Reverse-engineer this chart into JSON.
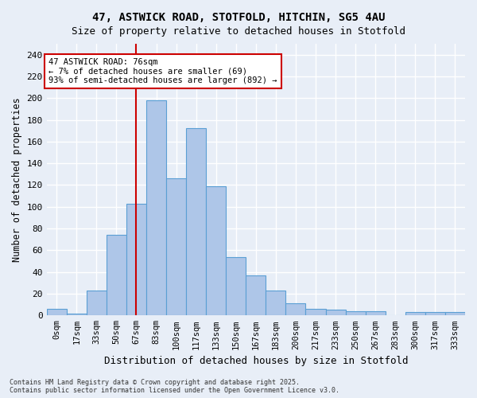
{
  "title1": "47, ASTWICK ROAD, STOTFOLD, HITCHIN, SG5 4AU",
  "title2": "Size of property relative to detached houses in Stotfold",
  "xlabel": "Distribution of detached houses by size in Stotfold",
  "ylabel": "Number of detached properties",
  "footer1": "Contains HM Land Registry data © Crown copyright and database right 2025.",
  "footer2": "Contains public sector information licensed under the Open Government Licence v3.0.",
  "bar_labels": [
    "0sqm",
    "17sqm",
    "33sqm",
    "50sqm",
    "67sqm",
    "83sqm",
    "100sqm",
    "117sqm",
    "133sqm",
    "150sqm",
    "167sqm",
    "183sqm",
    "200sqm",
    "217sqm",
    "233sqm",
    "250sqm",
    "267sqm",
    "283sqm",
    "300sqm",
    "317sqm",
    "333sqm"
  ],
  "bar_values": [
    6,
    2,
    23,
    74,
    103,
    198,
    126,
    172,
    119,
    54,
    37,
    23,
    11,
    6,
    5,
    4,
    4,
    0,
    3,
    3,
    3
  ],
  "bar_color": "#aec6e8",
  "bar_edge_color": "#5a9fd4",
  "annotation_line_label": "47 ASTWICK ROAD: 76sqm",
  "annotation_line1": "← 7% of detached houses are smaller (69)",
  "annotation_line2": "93% of semi-detached houses are larger (892) →",
  "vline_x": 76,
  "vline_color": "#cc0000",
  "ylim": [
    0,
    250
  ],
  "yticks": [
    0,
    20,
    40,
    60,
    80,
    100,
    120,
    140,
    160,
    180,
    200,
    220,
    240
  ],
  "bg_color": "#e8eef7",
  "grid_color": "#ffffff",
  "annotation_rect_color": "#ffffff",
  "annotation_rect_edge": "#cc0000"
}
